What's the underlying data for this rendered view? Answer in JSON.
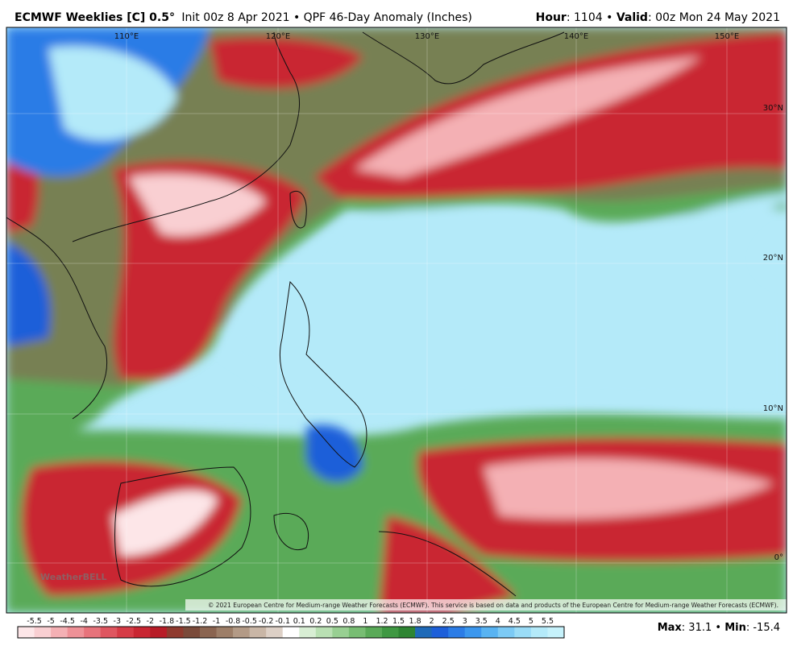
{
  "header": {
    "model": "ECMWF Weeklies [C] 0.5°",
    "info": "Init 00z 8 Apr 2021 • QPF 46-Day Anomaly (Inches)",
    "hour_label": "Hour",
    "hour": ": 1104 • ",
    "valid_label": "Valid",
    "valid": ": 00z Mon 24 May 2021"
  },
  "map": {
    "lon_labels": [
      "110°E",
      "120°E",
      "130°E",
      "140°E",
      "150°E"
    ],
    "lat_labels": [
      "30°N",
      "20°N",
      "10°N",
      "0°"
    ],
    "copyright": "© 2021 European Centre for Medium-range Weather Forecasts (ECMWF). This service is based on data and products of the European Centre for Medium-range Weather Forecasts (ECMWF).",
    "watermark": "WeatherBELL"
  },
  "colorbar": {
    "ticks": [
      -5.5,
      -5,
      -4.5,
      -4,
      -3.5,
      -3,
      -2.5,
      -2,
      -1.8,
      -1.5,
      -1.2,
      -1,
      -0.8,
      -0.5,
      -0.2,
      -0.1,
      0.1,
      0.2,
      0.5,
      0.8,
      1,
      1.2,
      1.5,
      1.8,
      2,
      2.5,
      3,
      3.5,
      4,
      4.5,
      5,
      5.5
    ],
    "colors": [
      "#fde6e8",
      "#f9cfd2",
      "#f4b0b4",
      "#ee9197",
      "#e7737b",
      "#df5660",
      "#d63b46",
      "#c92632",
      "#b81c27",
      "#8f3a2e",
      "#7a4a3a",
      "#8a6450",
      "#9d7e68",
      "#b39a86",
      "#c9b6a6",
      "#ddd0c6",
      "#ffffff",
      "#d8eed4",
      "#b9e0b3",
      "#98cf92",
      "#78bd73",
      "#5aaa58",
      "#3f9842",
      "#2e8533",
      "#1f6ab8",
      "#1d5fd9",
      "#2b7ce6",
      "#3b97ee",
      "#58b3f2",
      "#7ccaf5",
      "#9adcf7",
      "#b4eaf9",
      "#c6f2fb"
    ]
  },
  "footer": {
    "max_label": "Max",
    "max": ": 31.1 • ",
    "min_label": "Min",
    "min": ": -15.4"
  }
}
